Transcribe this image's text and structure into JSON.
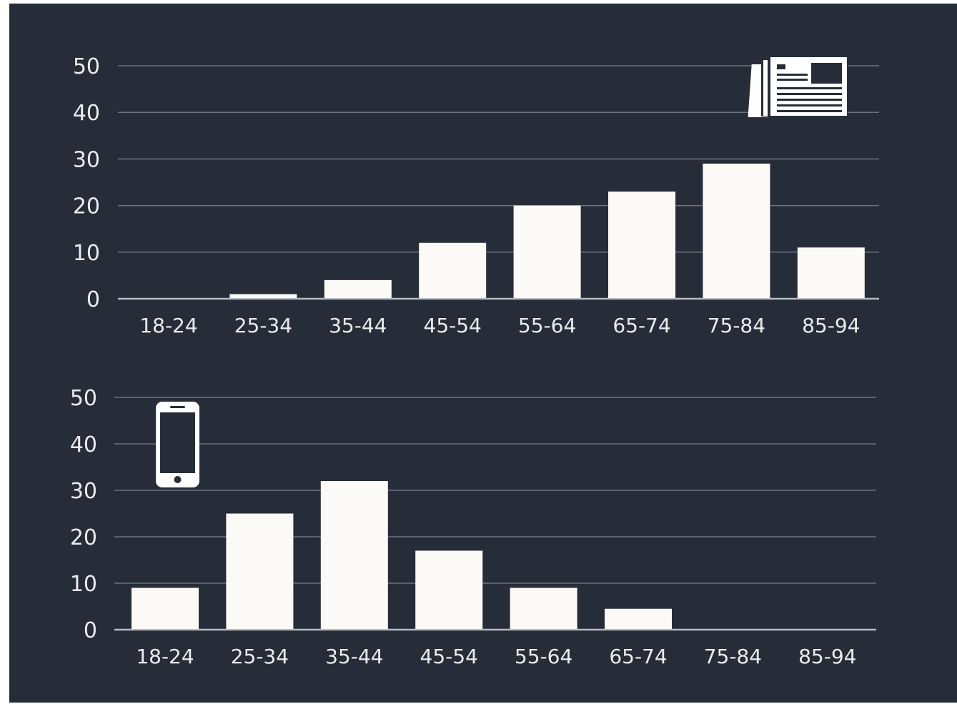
{
  "chart_data": [
    {
      "type": "bar",
      "icon": "newspaper-icon",
      "categories": [
        "18-24",
        "25-34",
        "35-44",
        "45-54",
        "55-64",
        "65-74",
        "75-84",
        "85-94"
      ],
      "values": [
        0,
        1,
        4,
        12,
        20,
        23,
        29,
        11
      ],
      "yticks": [
        "0",
        "10",
        "20",
        "30",
        "40",
        "50"
      ],
      "ylim": [
        0,
        50
      ],
      "grid": true
    },
    {
      "type": "bar",
      "icon": "smartphone-icon",
      "categories": [
        "18-24",
        "25-34",
        "35-44",
        "45-54",
        "55-64",
        "65-74",
        "75-84",
        "85-94"
      ],
      "values": [
        9,
        25,
        32,
        17,
        9,
        4.5,
        0,
        0
      ],
      "yticks": [
        "0",
        "10",
        "20",
        "30",
        "40",
        "50"
      ],
      "ylim": [
        0,
        50
      ],
      "grid": true
    }
  ],
  "colors": {
    "background": "#262d38",
    "bar": "#fbfaf7",
    "gridline": "#6b7380",
    "baseline": "#b8bcc2",
    "text": "#e9ebee"
  }
}
